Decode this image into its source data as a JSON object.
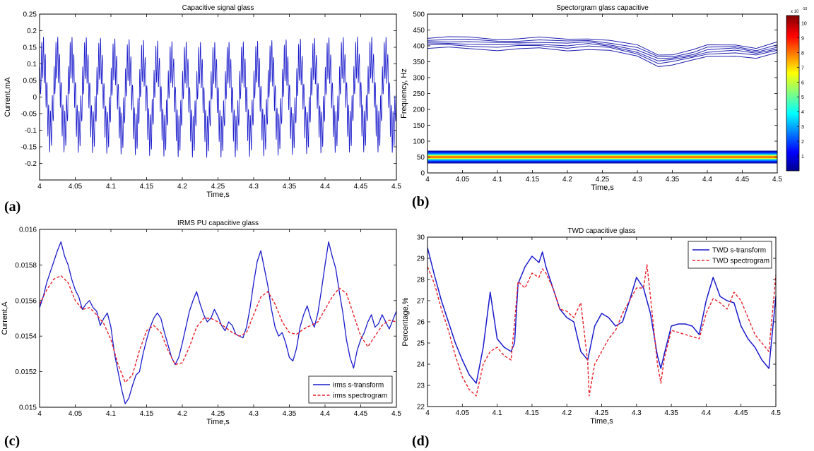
{
  "panel_labels": [
    "(a)",
    "(b)",
    "(c)",
    "(d)"
  ],
  "colors": {
    "blue": "#1a1acc",
    "red": "#e8202a",
    "axis": "#000000",
    "bg": "#ffffff"
  },
  "chart_data": [
    {
      "id": "a",
      "type": "line",
      "title": "Capacitive signal glass",
      "xlabel": "Time,s",
      "ylabel": "Current,mA",
      "xlim": [
        4,
        4.5
      ],
      "ylim": [
        -0.25,
        0.25
      ],
      "xticks": [
        4,
        4.05,
        4.1,
        4.15,
        4.2,
        4.25,
        4.3,
        4.35,
        4.4,
        4.45,
        4.5
      ],
      "xtick_labels": [
        "4",
        "4.05",
        "4.1",
        "4.15",
        "4.2",
        "4.25",
        "4.3",
        "4.35",
        "4.4",
        "4.45",
        "4.5"
      ],
      "yticks": [
        -0.25,
        -0.2,
        -0.15,
        -0.1,
        -0.05,
        0,
        0.05,
        0.1,
        0.15,
        0.2,
        0.25
      ],
      "ytick_labels": [
        "",
        "-0.2",
        "-0.15",
        "-0.1",
        "-0.05",
        "0",
        "0.05",
        "0.1",
        "0.15",
        "0.2",
        "0.25"
      ],
      "grid": false,
      "signal": {
        "fundamental_hz": 50,
        "harmonic_hz": 400,
        "fundamental_amp": 0.11,
        "harmonic_amp": 0.06
      }
    },
    {
      "id": "b",
      "type": "heatmap",
      "title": "Spectorgram glass capacitive",
      "xlabel": "Time,s",
      "ylabel": "Frequency, Hz",
      "xlim": [
        4,
        4.5
      ],
      "ylim": [
        0,
        500
      ],
      "xticks": [
        4,
        4.05,
        4.1,
        4.15,
        4.2,
        4.25,
        4.3,
        4.35,
        4.4,
        4.45,
        4.5
      ],
      "xtick_labels": [
        "4",
        "4.05",
        "4.1",
        "4.15",
        "4.2",
        "4.25",
        "4.3",
        "4.35",
        "4.4",
        "4.45",
        "4.5"
      ],
      "yticks": [
        0,
        50,
        100,
        150,
        200,
        250,
        300,
        350,
        400,
        450,
        500
      ],
      "ytick_labels": [
        "0",
        "50",
        "100",
        "150",
        "200",
        "250",
        "300",
        "350",
        "400",
        "450",
        "500"
      ],
      "colorbar": {
        "ticks": [
          1,
          2,
          3,
          4,
          5,
          6,
          7,
          8,
          9,
          10
        ],
        "tick_labels": [
          "1",
          "2",
          "3",
          "4",
          "5",
          "6",
          "7",
          "8",
          "9",
          "10"
        ],
        "range": [
          0,
          10.5
        ],
        "exponent": "x 10",
        "exponent_power": "-10"
      },
      "band_center_hz": 50,
      "band_half_width_hz": 20,
      "contour_center": {
        "x": [
          4.0,
          4.03,
          4.06,
          4.1,
          4.13,
          4.16,
          4.2,
          4.23,
          4.26,
          4.3,
          4.33,
          4.35,
          4.38,
          4.4,
          4.44,
          4.47,
          4.5
        ],
        "y": [
          410,
          412,
          410,
          405,
          408,
          410,
          404,
          408,
          402,
          385,
          355,
          358,
          372,
          385,
          388,
          378,
          395
        ]
      },
      "contour_offsets_hz": [
        -18,
        -9,
        -3,
        3,
        9,
        16
      ]
    },
    {
      "id": "c",
      "type": "line",
      "title": "IRMS PU capacitive glass",
      "xlabel": "Time,s",
      "ylabel": "Current,A",
      "xlim": [
        4,
        4.5
      ],
      "ylim": [
        0.015,
        0.016
      ],
      "xticks": [
        4,
        4.05,
        4.1,
        4.15,
        4.2,
        4.25,
        4.3,
        4.35,
        4.4,
        4.45,
        4.5
      ],
      "xtick_labels": [
        "4",
        "4.05",
        "4.1",
        "4.15",
        "4.2",
        "4.25",
        "4.3",
        "4.35",
        "4.4",
        "4.45",
        "4.5"
      ],
      "yticks": [
        0.015,
        0.0152,
        0.0154,
        0.0156,
        0.0158,
        0.016
      ],
      "ytick_labels": [
        "0.015",
        "0.0152",
        "0.0154",
        "0.0156",
        "0.0158",
        "0.016"
      ],
      "legend": {
        "position": "bottom-right",
        "entries": [
          "irms s-transform",
          "irms spectrogram"
        ]
      },
      "series": [
        {
          "name": "irms s-transform",
          "style": "solid",
          "x": [
            4.0,
            4.005,
            4.01,
            4.015,
            4.02,
            4.025,
            4.03,
            4.035,
            4.04,
            4.045,
            4.05,
            4.055,
            4.06,
            4.065,
            4.07,
            4.075,
            4.08,
            4.085,
            4.09,
            4.095,
            4.1,
            4.105,
            4.11,
            4.115,
            4.12,
            4.125,
            4.13,
            4.135,
            4.14,
            4.145,
            4.15,
            4.155,
            4.16,
            4.165,
            4.17,
            4.175,
            4.18,
            4.185,
            4.19,
            4.195,
            4.2,
            4.205,
            4.21,
            4.215,
            4.22,
            4.225,
            4.23,
            4.235,
            4.24,
            4.245,
            4.25,
            4.255,
            4.26,
            4.265,
            4.27,
            4.275,
            4.28,
            4.285,
            4.29,
            4.295,
            4.3,
            4.305,
            4.31,
            4.315,
            4.32,
            4.325,
            4.33,
            4.335,
            4.34,
            4.345,
            4.35,
            4.355,
            4.36,
            4.365,
            4.37,
            4.375,
            4.38,
            4.385,
            4.39,
            4.395,
            4.4,
            4.405,
            4.41,
            4.415,
            4.42,
            4.425,
            4.43,
            4.435,
            4.44,
            4.445,
            4.45,
            4.455,
            4.46,
            4.465,
            4.47,
            4.475,
            4.48,
            4.485,
            4.49,
            4.495,
            4.5
          ],
          "values": [
            0.01556,
            0.01562,
            0.0157,
            0.01576,
            0.01582,
            0.01588,
            0.01593,
            0.01585,
            0.0158,
            0.01572,
            0.01566,
            0.01562,
            0.01555,
            0.01558,
            0.0156,
            0.01556,
            0.01554,
            0.01546,
            0.0155,
            0.01553,
            0.01545,
            0.0153,
            0.0152,
            0.0151,
            0.01502,
            0.01505,
            0.01512,
            0.01518,
            0.0152,
            0.0153,
            0.01538,
            0.01545,
            0.0155,
            0.01553,
            0.0155,
            0.01542,
            0.01535,
            0.01528,
            0.01524,
            0.01528,
            0.01536,
            0.01545,
            0.01554,
            0.0156,
            0.01565,
            0.01558,
            0.01552,
            0.01548,
            0.0155,
            0.01555,
            0.01551,
            0.01546,
            0.01543,
            0.01548,
            0.01546,
            0.01541,
            0.0154,
            0.01539,
            0.01545,
            0.01556,
            0.0157,
            0.01582,
            0.01588,
            0.01578,
            0.01568,
            0.01555,
            0.01545,
            0.0154,
            0.01542,
            0.01536,
            0.01528,
            0.01526,
            0.01533,
            0.01545,
            0.01552,
            0.01557,
            0.0155,
            0.01545,
            0.01553,
            0.01566,
            0.0158,
            0.01593,
            0.01585,
            0.01578,
            0.01565,
            0.01553,
            0.01538,
            0.01528,
            0.01522,
            0.01532,
            0.01538,
            0.01542,
            0.01548,
            0.01552,
            0.01545,
            0.01547,
            0.01552,
            0.01548,
            0.01544,
            0.01549,
            0.01554
          ]
        },
        {
          "name": "irms spectrogram",
          "style": "dashed",
          "x": [
            4.0,
            4.01,
            4.02,
            4.03,
            4.04,
            4.05,
            4.06,
            4.07,
            4.08,
            4.09,
            4.1,
            4.11,
            4.12,
            4.13,
            4.14,
            4.15,
            4.16,
            4.17,
            4.18,
            4.19,
            4.2,
            4.21,
            4.22,
            4.23,
            4.24,
            4.25,
            4.26,
            4.27,
            4.28,
            4.29,
            4.3,
            4.31,
            4.32,
            4.33,
            4.34,
            4.35,
            4.36,
            4.37,
            4.38,
            4.39,
            4.4,
            4.41,
            4.42,
            4.43,
            4.44,
            4.45,
            4.46,
            4.47,
            4.48,
            4.49,
            4.5
          ],
          "values": [
            0.01558,
            0.01566,
            0.01572,
            0.01574,
            0.0157,
            0.0156,
            0.01555,
            0.01556,
            0.01552,
            0.01547,
            0.01538,
            0.01524,
            0.01514,
            0.01518,
            0.01532,
            0.01543,
            0.01546,
            0.01542,
            0.01532,
            0.01524,
            0.01525,
            0.01534,
            0.01545,
            0.0155,
            0.0155,
            0.01548,
            0.01545,
            0.01542,
            0.0154,
            0.01542,
            0.01552,
            0.01562,
            0.01565,
            0.01558,
            0.01548,
            0.01542,
            0.01541,
            0.01544,
            0.01546,
            0.01548,
            0.01555,
            0.01562,
            0.01567,
            0.01564,
            0.01552,
            0.0154,
            0.01534,
            0.0154,
            0.01546,
            0.01549,
            0.01548
          ]
        }
      ]
    },
    {
      "id": "d",
      "type": "line",
      "title": "TWD capacitive glass",
      "xlabel": "Time,s",
      "ylabel": "Percentage,%",
      "xlim": [
        4,
        4.5
      ],
      "ylim": [
        22,
        30
      ],
      "xticks": [
        4,
        4.05,
        4.1,
        4.15,
        4.2,
        4.25,
        4.3,
        4.35,
        4.4,
        4.45,
        4.5
      ],
      "xtick_labels": [
        "4",
        "4.05",
        "4.1",
        "4.15",
        "4.2",
        "4.25",
        "4.3",
        "4.35",
        "4.4",
        "4.45",
        "4.5"
      ],
      "yticks": [
        22,
        23,
        24,
        25,
        26,
        27,
        28,
        29,
        30
      ],
      "ytick_labels": [
        "22",
        "23",
        "24",
        "25",
        "26",
        "27",
        "28",
        "29",
        "30"
      ],
      "legend": {
        "position": "top-right",
        "entries": [
          "TWD s-transform",
          "TWD spectrogram"
        ]
      },
      "series": [
        {
          "name": "TWD s-transform",
          "style": "solid",
          "x": [
            4.0,
            4.01,
            4.02,
            4.03,
            4.04,
            4.05,
            4.06,
            4.07,
            4.08,
            4.09,
            4.1,
            4.11,
            4.12,
            4.125,
            4.13,
            4.14,
            4.15,
            4.16,
            4.165,
            4.17,
            4.18,
            4.19,
            4.2,
            4.21,
            4.22,
            4.23,
            4.24,
            4.25,
            4.26,
            4.27,
            4.28,
            4.29,
            4.3,
            4.31,
            4.32,
            4.33,
            4.335,
            4.34,
            4.35,
            4.36,
            4.37,
            4.38,
            4.39,
            4.4,
            4.41,
            4.42,
            4.43,
            4.44,
            4.45,
            4.46,
            4.47,
            4.48,
            4.49,
            4.5
          ],
          "values": [
            29.5,
            28.2,
            27.0,
            26.0,
            25.0,
            24.2,
            23.5,
            23.1,
            24.8,
            27.4,
            25.2,
            24.8,
            24.6,
            25.0,
            27.8,
            28.6,
            29.1,
            28.8,
            29.3,
            28.6,
            27.6,
            26.6,
            26.2,
            26.0,
            24.6,
            24.2,
            25.8,
            26.4,
            26.2,
            25.8,
            26.0,
            27.0,
            28.1,
            27.6,
            26.4,
            24.4,
            23.8,
            24.5,
            25.8,
            25.9,
            25.9,
            25.8,
            25.4,
            27.0,
            28.1,
            27.2,
            27.0,
            26.9,
            25.8,
            25.2,
            24.8,
            24.2,
            23.8,
            27.2
          ]
        },
        {
          "name": "TWD spectrogram",
          "style": "dashed",
          "x": [
            4.0,
            4.01,
            4.02,
            4.03,
            4.04,
            4.05,
            4.06,
            4.07,
            4.08,
            4.09,
            4.1,
            4.11,
            4.12,
            4.125,
            4.13,
            4.14,
            4.15,
            4.16,
            4.165,
            4.17,
            4.18,
            4.19,
            4.2,
            4.21,
            4.22,
            4.23,
            4.232,
            4.24,
            4.25,
            4.26,
            4.27,
            4.28,
            4.29,
            4.3,
            4.31,
            4.315,
            4.32,
            4.33,
            4.335,
            4.34,
            4.35,
            4.36,
            4.37,
            4.38,
            4.39,
            4.4,
            4.41,
            4.42,
            4.43,
            4.44,
            4.45,
            4.46,
            4.47,
            4.48,
            4.49,
            4.5
          ],
          "values": [
            28.6,
            27.8,
            26.6,
            25.6,
            24.4,
            23.4,
            22.8,
            22.5,
            24.0,
            24.6,
            24.8,
            24.4,
            24.2,
            26.0,
            27.9,
            27.6,
            28.3,
            28.1,
            28.5,
            28.3,
            27.6,
            26.6,
            26.5,
            26.2,
            26.9,
            24.1,
            22.5,
            24.0,
            24.6,
            25.2,
            25.6,
            26.4,
            27.0,
            27.6,
            27.6,
            28.7,
            27.2,
            24.0,
            23.1,
            24.3,
            25.6,
            25.5,
            25.4,
            25.3,
            25.2,
            26.4,
            27.1,
            26.9,
            26.6,
            27.4,
            27.0,
            26.2,
            25.4,
            25.0,
            24.6,
            28.2
          ]
        }
      ]
    }
  ]
}
